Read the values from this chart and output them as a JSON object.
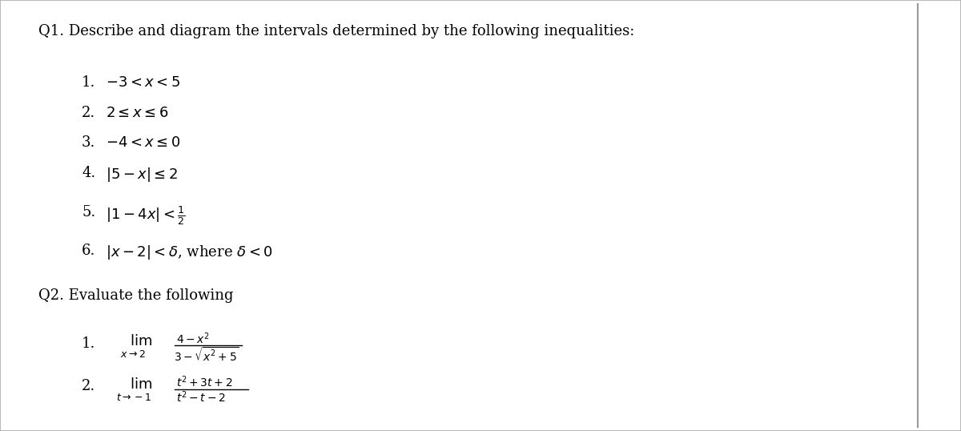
{
  "background_color": "#e8e8e8",
  "panel_color": "#ffffff",
  "text_color": "#000000",
  "title_q1": "Q1. Describe and diagram the intervals determined by the following inequalities:",
  "title_q2": "Q2. Evaluate the following",
  "items_q1": [
    {
      "num": "1.",
      "text": "$-3 < x < 5$"
    },
    {
      "num": "2.",
      "text": "$2 \\leq x \\leq 6$"
    },
    {
      "num": "3.",
      "text": "$-4 < x \\leq 0$"
    },
    {
      "num": "4.",
      "text": "$|5 - x| \\leq 2$"
    },
    {
      "num": "5.",
      "text": "$|1 - 4x| < \\frac{1}{2}$"
    },
    {
      "num": "6.",
      "text": "$|x - 2| < \\delta$, where $\\delta < 0$"
    }
  ],
  "font_size_title": 13,
  "font_size_item": 13,
  "font_size_small": 9,
  "font_size_expr": 10
}
